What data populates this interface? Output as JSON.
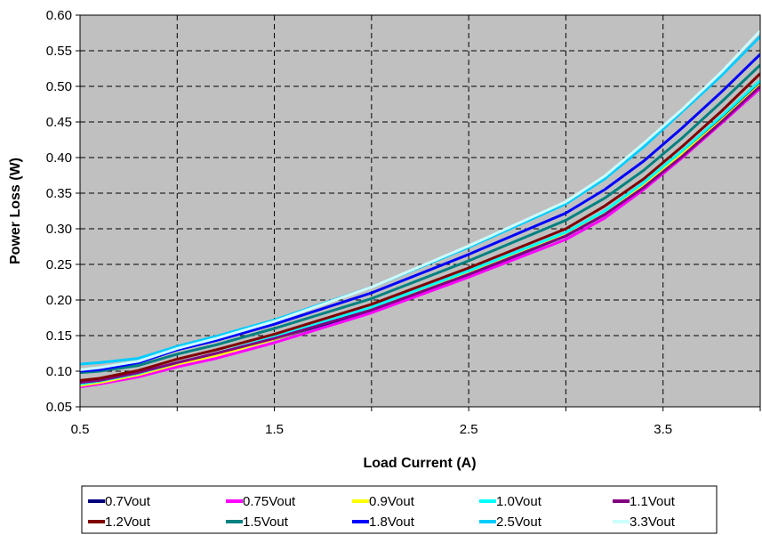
{
  "chart_data": {
    "type": "line",
    "title": "",
    "xlabel": "Load Current (A)",
    "ylabel": "Power Loss (W)",
    "xlim": [
      0.5,
      4.0
    ],
    "ylim": [
      0.05,
      0.6
    ],
    "x_ticks": [
      "0.5",
      "1.5",
      "2.5",
      "3.5"
    ],
    "y_ticks": [
      "0.05",
      "0.10",
      "0.15",
      "0.20",
      "0.25",
      "0.30",
      "0.35",
      "0.40",
      "0.45",
      "0.50",
      "0.55",
      "0.60"
    ],
    "grid": true,
    "plot_background": "#c0c0c0",
    "legend_position": "bottom",
    "x": [
      0.5,
      0.6,
      0.8,
      1.0,
      1.2,
      1.5,
      2.0,
      2.5,
      3.0,
      3.2,
      3.4,
      3.6,
      3.8,
      4.0
    ],
    "series": [
      {
        "name": "0.7Vout",
        "color": "#000080",
        "values": [
          0.085,
          0.087,
          0.097,
          0.112,
          0.124,
          0.145,
          0.185,
          0.235,
          0.29,
          0.32,
          0.36,
          0.405,
          0.455,
          0.505
        ]
      },
      {
        "name": "0.75Vout",
        "color": "#ff00ff",
        "values": [
          0.078,
          0.082,
          0.092,
          0.106,
          0.118,
          0.14,
          0.182,
          0.232,
          0.285,
          0.315,
          0.355,
          0.4,
          0.448,
          0.497
        ]
      },
      {
        "name": "0.9Vout",
        "color": "#ffff00",
        "values": [
          0.08,
          0.084,
          0.095,
          0.11,
          0.122,
          0.145,
          0.188,
          0.238,
          0.292,
          0.322,
          0.36,
          0.405,
          0.452,
          0.502
        ]
      },
      {
        "name": "1.0Vout",
        "color": "#00ffff",
        "values": [
          0.082,
          0.086,
          0.097,
          0.112,
          0.125,
          0.148,
          0.19,
          0.241,
          0.295,
          0.325,
          0.365,
          0.41,
          0.458,
          0.508
        ]
      },
      {
        "name": "1.1Vout",
        "color": "#800080",
        "values": [
          0.084,
          0.087,
          0.098,
          0.112,
          0.125,
          0.146,
          0.186,
          0.236,
          0.29,
          0.32,
          0.358,
          0.402,
          0.45,
          0.5
        ]
      },
      {
        "name": "1.2Vout",
        "color": "#800000",
        "values": [
          0.087,
          0.09,
          0.101,
          0.117,
          0.13,
          0.152,
          0.194,
          0.245,
          0.3,
          0.332,
          0.37,
          0.416,
          0.465,
          0.518
        ]
      },
      {
        "name": "1.5Vout",
        "color": "#008080",
        "values": [
          0.098,
          0.1,
          0.108,
          0.124,
          0.137,
          0.16,
          0.202,
          0.255,
          0.312,
          0.343,
          0.382,
          0.428,
          0.478,
          0.53
        ]
      },
      {
        "name": "1.8Vout",
        "color": "#0000ff",
        "values": [
          0.1,
          0.102,
          0.112,
          0.13,
          0.143,
          0.166,
          0.21,
          0.264,
          0.322,
          0.355,
          0.395,
          0.442,
          0.492,
          0.545
        ]
      },
      {
        "name": "2.5Vout",
        "color": "#00ccff",
        "values": [
          0.11,
          0.112,
          0.118,
          0.135,
          0.149,
          0.172,
          0.218,
          0.274,
          0.335,
          0.37,
          0.415,
          0.465,
          0.515,
          0.57
        ]
      },
      {
        "name": "3.3Vout",
        "color": "#ccffff",
        "values": [
          0.102,
          0.105,
          0.114,
          0.132,
          0.146,
          0.17,
          0.218,
          0.276,
          0.338,
          0.374,
          0.42,
          0.468,
          0.52,
          0.578
        ]
      }
    ]
  }
}
